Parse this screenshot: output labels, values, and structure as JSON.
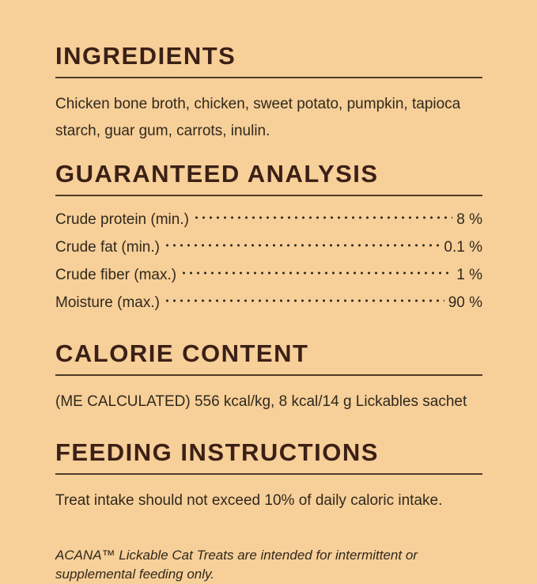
{
  "palette": {
    "background": "#f7cf99",
    "heading": "#3b2016",
    "body_text": "#30291c",
    "rule": "#4e3b27"
  },
  "sections": [
    {
      "id": "ingredients",
      "title": "INGREDIENTS",
      "body": "Chicken bone broth, chicken, sweet potato, pumpkin, tapioca starch, guar gum, carrots, inulin."
    },
    {
      "id": "guaranteed-analysis",
      "title": "GUARANTEED ANALYSIS",
      "rows": [
        {
          "label": "Crude protein (min.)",
          "value": "8 %"
        },
        {
          "label": "Crude fat (min.)",
          "value": "0.1 %"
        },
        {
          "label": "Crude fiber (max.)",
          "value": "1 %"
        },
        {
          "label": "Moisture (max.)",
          "value": "90 %"
        }
      ]
    },
    {
      "id": "calorie-content",
      "title": "CALORIE CONTENT",
      "body": "(ME CALCULATED) 556 kcal/kg, 8 kcal/14 g Lickables sachet"
    },
    {
      "id": "feeding-instructions",
      "title": "FEEDING INSTRUCTIONS",
      "body": "Treat intake should not exceed 10% of daily caloric intake.",
      "footnote": "ACANA™ Lickable Cat Treats are intended for intermittent or supplemental feeding only."
    }
  ]
}
